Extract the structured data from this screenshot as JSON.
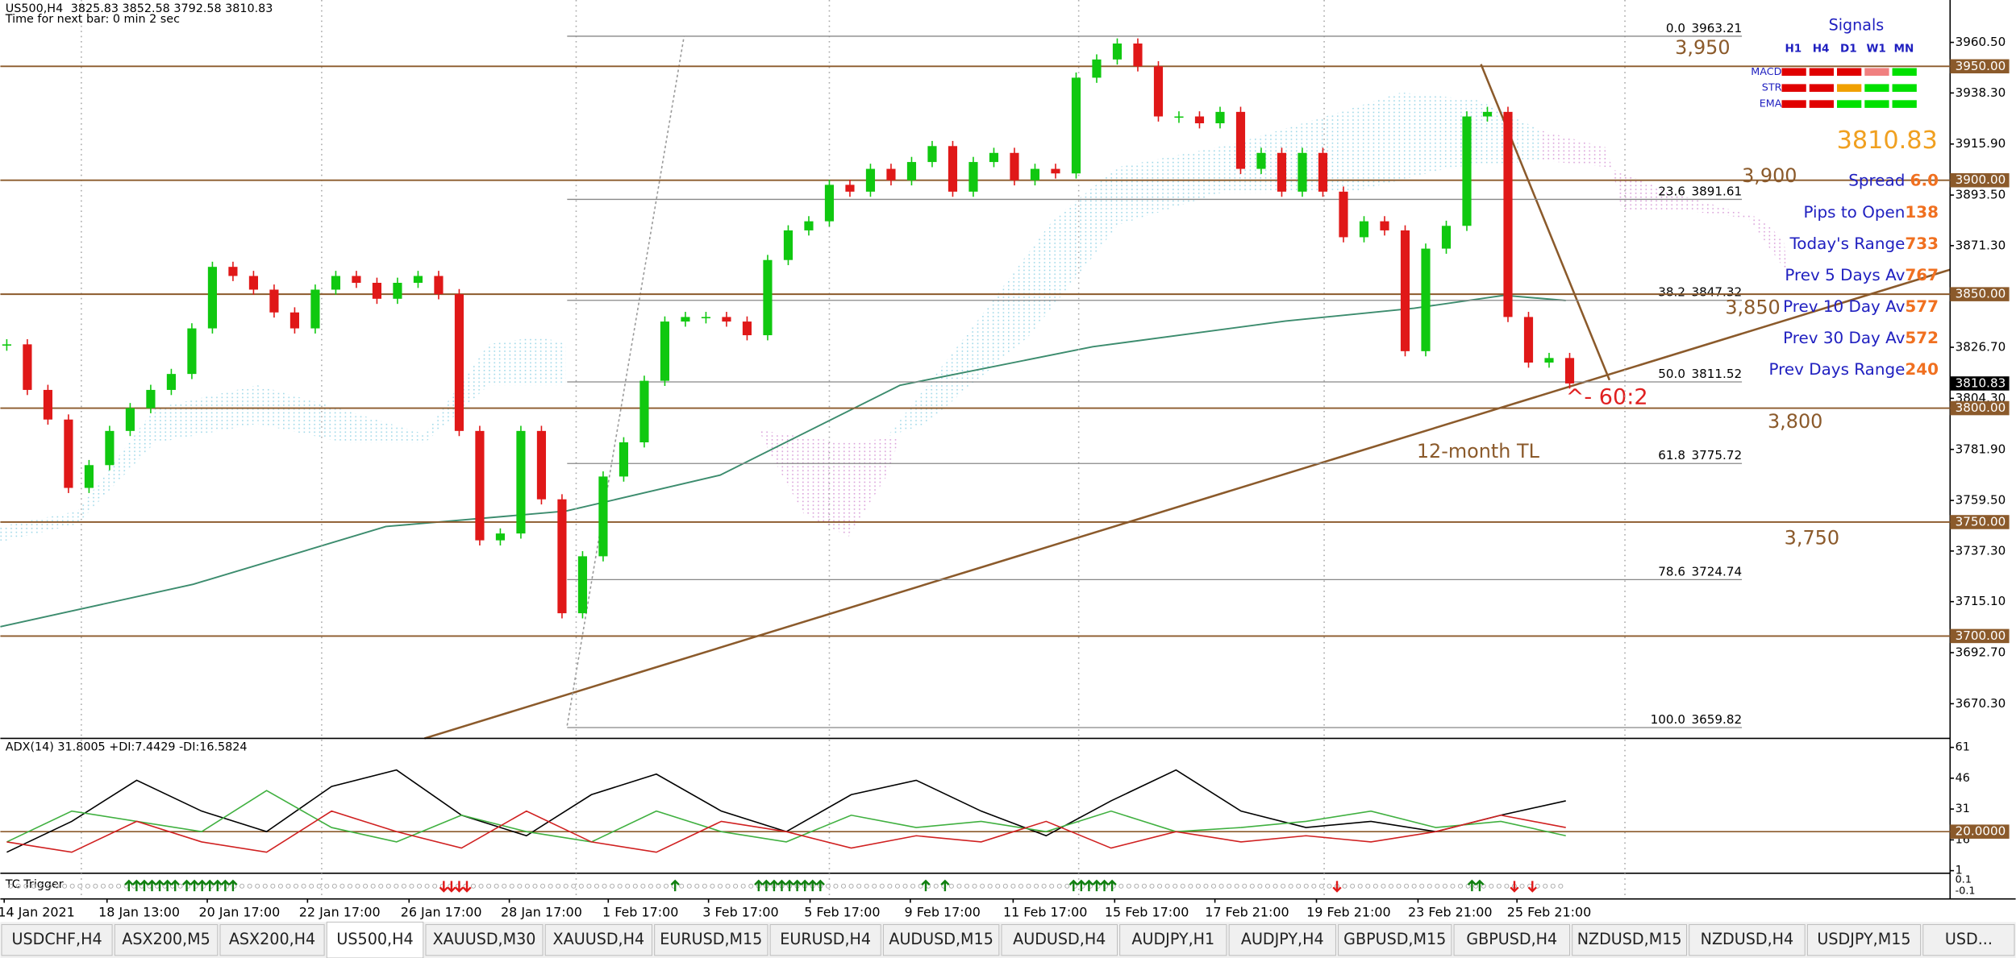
{
  "header": {
    "symbol": "US500,H4",
    "ohlc": "3825.83 3852.58 3792.58 3810.83",
    "timer": "Time for next bar: 0 min 2 sec"
  },
  "price_axis": {
    "ticks": [
      {
        "value": 3960.5,
        "label": "3960.50"
      },
      {
        "value": 3938.3,
        "label": "3938.30"
      },
      {
        "value": 3915.9,
        "label": "3915.90"
      },
      {
        "value": 3893.5,
        "label": "3893.50"
      },
      {
        "value": 3871.3,
        "label": "3871.30"
      },
      {
        "value": 3826.7,
        "label": "3826.70"
      },
      {
        "value": 3804.3,
        "label": "3804.30"
      },
      {
        "value": 3781.9,
        "label": "3781.90"
      },
      {
        "value": 3759.5,
        "label": "3759.50"
      },
      {
        "value": 3737.3,
        "label": "3737.30"
      },
      {
        "value": 3715.1,
        "label": "3715.10"
      },
      {
        "value": 3692.7,
        "label": "3692.70"
      },
      {
        "value": 3670.3,
        "label": "3670.30"
      }
    ]
  },
  "levels": [
    {
      "value": 3950,
      "label": "3950.00",
      "tag": "3,950"
    },
    {
      "value": 3900,
      "label": "3900.00",
      "tag": "3,900"
    },
    {
      "value": 3850,
      "label": "3850.00",
      "tag": "3,850"
    },
    {
      "value": 3800,
      "label": "3800.00",
      "tag": "3,800"
    },
    {
      "value": 3750,
      "label": "3750.00",
      "tag": "3,750"
    },
    {
      "value": 3700,
      "label": "3700.00"
    }
  ],
  "current": {
    "value": 3810.83,
    "label": "3810.83"
  },
  "fib": [
    {
      "ratio": "0.0",
      "price": "3963.21",
      "value": 3963.21
    },
    {
      "ratio": "23.6",
      "price": "3891.61",
      "value": 3891.61
    },
    {
      "ratio": "38.2",
      "price": "3847.32",
      "value": 3847.32
    },
    {
      "ratio": "50.0",
      "price": "3811.52",
      "value": 3811.52
    },
    {
      "ratio": "61.8",
      "price": "3775.72",
      "value": 3775.72
    },
    {
      "ratio": "78.6",
      "price": "3724.74",
      "value": 3724.74
    },
    {
      "ratio": "100.0",
      "price": "3659.82",
      "value": 3659.82
    }
  ],
  "closes": [
    3828,
    3808,
    3795,
    3765,
    3775,
    3790,
    3800,
    3808,
    3815,
    3835,
    3862,
    3858,
    3852,
    3842,
    3835,
    3852,
    3858,
    3855,
    3848,
    3855,
    3858,
    3850,
    3790,
    3742,
    3745,
    3790,
    3760,
    3710,
    3735,
    3770,
    3785,
    3812,
    3838,
    3840,
    3840,
    3838,
    3832,
    3865,
    3878,
    3882,
    3898,
    3895,
    3905,
    3900,
    3908,
    3915,
    3895,
    3908,
    3912,
    3900,
    3905,
    3903,
    3945,
    3953,
    3960,
    3950,
    3928,
    3928,
    3925,
    3930,
    3905,
    3912,
    3895,
    3912,
    3895,
    3875,
    3882,
    3878,
    3825,
    3870,
    3880,
    3928,
    3930,
    3840,
    3820,
    3822,
    3810.83
  ],
  "time_axis": [
    "14 Jan 2021",
    "18 Jan 13:00",
    "20 Jan 17:00",
    "22 Jan 17:00",
    "26 Jan 17:00",
    "28 Jan 17:00",
    "1 Feb 17:00",
    "3 Feb 17:00",
    "5 Feb 17:00",
    "9 Feb 17:00",
    "11 Feb 17:00",
    "15 Feb 17:00",
    "17 Feb 21:00",
    "19 Feb 21:00",
    "23 Feb 21:00",
    "25 Feb 21:00"
  ],
  "adx": {
    "label": "ADX(14) 31.8005 +DI:7.4429 -DI:16.5824",
    "ticks": [
      61,
      46,
      31,
      16,
      1
    ],
    "level": {
      "value": 20,
      "label": "20.0000"
    },
    "adx": [
      10,
      25,
      45,
      30,
      20,
      42,
      50,
      28,
      18,
      38,
      48,
      30,
      20,
      38,
      45,
      30,
      18,
      35,
      50,
      30,
      22,
      25,
      20,
      28,
      35
    ],
    "plus_di": [
      15,
      30,
      25,
      20,
      40,
      22,
      15,
      28,
      20,
      15,
      30,
      20,
      15,
      28,
      22,
      25,
      20,
      30,
      20,
      22,
      25,
      30,
      22,
      25,
      18
    ],
    "minus_di": [
      15,
      10,
      25,
      15,
      10,
      30,
      20,
      12,
      30,
      15,
      10,
      25,
      20,
      12,
      18,
      15,
      25,
      12,
      20,
      15,
      18,
      15,
      20,
      28,
      22
    ]
  },
  "tc": {
    "label": "TC Trigger",
    "ticks": [
      "0.1",
      "-0.1"
    ]
  },
  "signals": {
    "title": "Signals",
    "timeframes": [
      "H1",
      "H4",
      "D1",
      "W1",
      "MN"
    ],
    "rows": [
      {
        "name": "MACD",
        "colors": [
          "#e00000",
          "#e00000",
          "#e00000",
          "#f08080",
          "#00e000"
        ]
      },
      {
        "name": "STR",
        "colors": [
          "#e00000",
          "#e00000",
          "#f0a000",
          "#00e000",
          "#00e000"
        ]
      },
      {
        "name": "EMA",
        "colors": [
          "#e00000",
          "#e00000",
          "#00e000",
          "#00e000",
          "#00e000"
        ]
      }
    ]
  },
  "stats": {
    "price": "3810.83",
    "rows": [
      {
        "label": "Spread ",
        "value": "6.0"
      },
      {
        "label": "Pips to Open",
        "value": "138"
      },
      {
        "label": "Today's Range",
        "value": "733"
      },
      {
        "label": "Prev 5 Days Av",
        "value": "767"
      },
      {
        "label": "Prev 10 Day Av",
        "value": "577"
      },
      {
        "label": "Prev 30 Day Av",
        "value": "572"
      },
      {
        "label": "Prev Days Range",
        "value": "240"
      }
    ]
  },
  "annotations": {
    "ratio": "^- 60:2",
    "trendline": "12-month TL"
  },
  "tabs": [
    "USDCHF,H4",
    "ASX200,M5",
    "ASX200,H4",
    "US500,H4",
    "XAUUSD,M30",
    "XAUUSD,H4",
    "EURUSD,M15",
    "EURUSD,H4",
    "AUDUSD,M15",
    "AUDUSD,H4",
    "AUDJPY,H1",
    "AUDJPY,H4",
    "GBPUSD,M15",
    "GBPUSD,H4",
    "NZDUSD,M15",
    "NZDUSD,H4",
    "USDJPY,M15",
    "USD..."
  ],
  "active_tab": 3
}
